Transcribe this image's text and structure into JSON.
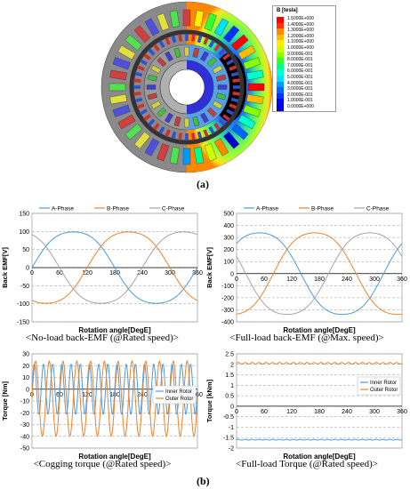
{
  "figure_a": {
    "label": "(a)",
    "legend": {
      "title": "B [tesla]",
      "levels": [
        "1.5000E+000",
        "1.4000E+000",
        "1.3000E+000",
        "1.2000E+000",
        "1.1000E+000",
        "1.0000E+000",
        "9.0000E-001",
        "8.0000E-001",
        "7.0000E-001",
        "6.0000E-001",
        "5.0000E-001",
        "4.0000E-001",
        "3.0000E-001",
        "2.0000E-001",
        "1.0000E-001",
        "0.0000E+000"
      ],
      "colors": [
        "#ff0000",
        "#ff3300",
        "#ff8800",
        "#ffbb00",
        "#ffee00",
        "#ccff00",
        "#88ff00",
        "#33ff33",
        "#00ff88",
        "#00ffcc",
        "#00ddff",
        "#0099ff",
        "#0066ff",
        "#0033ff",
        "#0000ff",
        "#0000cc"
      ]
    }
  },
  "figure_b": {
    "label": "(b)"
  },
  "chart_data": [
    {
      "type": "line",
      "caption": "<No-load back-EMF (@Rated speed)>",
      "xlabel": "Rotation angle[DegE]",
      "ylabel": "Back EMF[V]",
      "xlim": [
        0,
        360
      ],
      "ylim": [
        -150,
        150
      ],
      "xticks": [
        0,
        60,
        120,
        180,
        240,
        300,
        360
      ],
      "yticks": [
        -150,
        -100,
        -50,
        0,
        50,
        100,
        150
      ],
      "grid": true,
      "legend_position": "top",
      "series": [
        {
          "name": "A-Phase",
          "color": "#4f9bd9",
          "amplitude": 105,
          "phase_deg": 0
        },
        {
          "name": "B-Phase",
          "color": "#f0822c",
          "amplitude": 105,
          "phase_deg": -120
        },
        {
          "name": "C-Phase",
          "color": "#a5a5a5",
          "amplitude": 105,
          "phase_deg": 120
        }
      ]
    },
    {
      "type": "line",
      "caption": "<Full-load back-EMF (@Max. speed)>",
      "xlabel": "Rotation angle[DegE]",
      "ylabel": "Back EMF[V]",
      "xlim": [
        0,
        360
      ],
      "ylim": [
        -400,
        500
      ],
      "xticks": [
        0,
        60,
        120,
        180,
        240,
        300,
        360
      ],
      "yticks": [
        -400,
        -300,
        -200,
        -100,
        0,
        100,
        200,
        300,
        400,
        500
      ],
      "grid": true,
      "legend_position": "top",
      "series": [
        {
          "name": "A-Phase",
          "color": "#4f9bd9",
          "amplitude": 360,
          "phase_deg": 40
        },
        {
          "name": "B-Phase",
          "color": "#f0822c",
          "amplitude": 360,
          "phase_deg": -80
        },
        {
          "name": "C-Phase",
          "color": "#a5a5a5",
          "amplitude": 360,
          "phase_deg": 160
        }
      ]
    },
    {
      "type": "line",
      "caption": "<Cogging torque (@Rated speed)>",
      "xlabel": "Rotation angle[DegE]",
      "ylabel": "Torque [Nm]",
      "xlim": [
        0,
        360
      ],
      "ylim": [
        -50,
        30
      ],
      "xticks": [
        0,
        60,
        120,
        180,
        240,
        300,
        360
      ],
      "yticks": [
        -50,
        -40,
        -30,
        -20,
        -10,
        0,
        10,
        20,
        30
      ],
      "grid": true,
      "legend_position": "right",
      "series": [
        {
          "name": "Inner Rotor",
          "color": "#4f9bd9",
          "mean": 0,
          "amplitude": 22,
          "cycles": 18
        },
        {
          "name": "Outer Rotor",
          "color": "#f0822c",
          "mean": -8,
          "amplitude": 32,
          "cycles": 12
        }
      ]
    },
    {
      "type": "line",
      "caption": "<Full-load Torque (@Rated speed)>",
      "xlabel": "Rotation angle[DegE]",
      "ylabel": "Torque [kNm]",
      "xlim": [
        0,
        360
      ],
      "ylim": [
        -2,
        2.5
      ],
      "xticks": [
        0,
        60,
        120,
        180,
        240,
        300,
        360
      ],
      "yticks": [
        -2,
        -1.5,
        -1,
        -0.5,
        0,
        0.5,
        1,
        1.5,
        2,
        2.5
      ],
      "grid": true,
      "legend_position": "right",
      "series": [
        {
          "name": "Inner Rotor",
          "color": "#4f9bd9",
          "mean": -1.6,
          "amplitude": 0.02,
          "cycles": 24
        },
        {
          "name": "Outer Rotor",
          "color": "#f0822c",
          "mean": 2.05,
          "amplitude": 0.04,
          "cycles": 24
        }
      ]
    }
  ]
}
